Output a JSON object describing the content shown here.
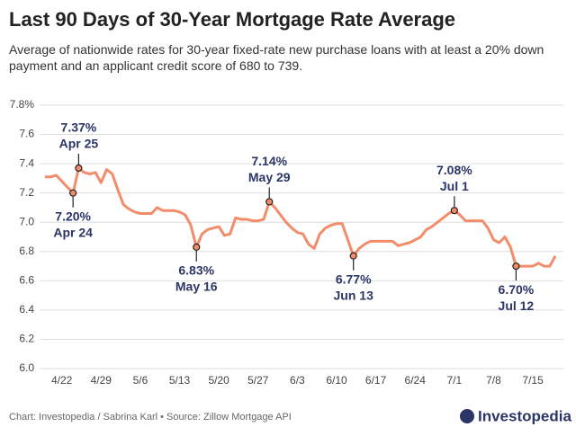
{
  "chart_data": {
    "type": "line",
    "title": "Last 90 Days of 30-Year Mortgage Rate Average",
    "subtitle": "Average of nationwide rates for 30-year fixed-rate new purchase loans with at least a 20% down payment and an applicant credit score of 680 to 739.",
    "source": "Chart: Investopedia / Sabrina Karl • Source: Zillow Mortgage API",
    "brand": "Investopedia",
    "categories": [
      null,
      null,
      null,
      "4/22",
      null,
      null,
      null,
      null,
      null,
      null,
      "4/29",
      null,
      null,
      null,
      null,
      null,
      null,
      "5/6",
      null,
      null,
      null,
      null,
      null,
      null,
      "5/13",
      null,
      null,
      null,
      null,
      null,
      null,
      "5/20",
      null,
      null,
      null,
      null,
      null,
      null,
      "5/27",
      null,
      null,
      null,
      null,
      null,
      null,
      "6/3",
      null,
      null,
      null,
      null,
      null,
      null,
      "6/10",
      null,
      null,
      null,
      null,
      null,
      null,
      "6/17",
      null,
      null,
      null,
      null,
      null,
      null,
      "6/24",
      null,
      null,
      null,
      null,
      null,
      null,
      "7/1",
      null,
      null,
      null,
      null,
      null,
      null,
      "7/8",
      null,
      null,
      null,
      null,
      null,
      null,
      "7/15",
      null,
      null,
      null,
      null
    ],
    "series": [
      {
        "name": "30-Year Mortgage Rate Average",
        "color": "#f28c6b",
        "values": [
          7.31,
          7.31,
          7.32,
          7.28,
          7.24,
          7.2,
          7.37,
          7.34,
          7.33,
          7.34,
          7.27,
          7.36,
          7.33,
          7.22,
          7.12,
          7.09,
          7.07,
          7.06,
          7.06,
          7.06,
          7.1,
          7.08,
          7.08,
          7.08,
          7.07,
          7.05,
          6.98,
          6.83,
          6.92,
          6.95,
          6.96,
          6.97,
          6.91,
          6.92,
          7.03,
          7.02,
          7.02,
          7.01,
          7.01,
          7.02,
          7.14,
          7.1,
          7.05,
          7.0,
          6.96,
          6.93,
          6.92,
          6.85,
          6.82,
          6.92,
          6.96,
          6.98,
          6.99,
          6.99,
          6.88,
          6.77,
          6.82,
          6.85,
          6.87,
          6.87,
          6.87,
          6.87,
          6.87,
          6.84,
          6.85,
          6.86,
          6.88,
          6.9,
          6.95,
          6.97,
          7.0,
          7.03,
          7.06,
          7.08,
          7.05,
          7.01,
          7.01,
          7.01,
          7.01,
          6.96,
          6.88,
          6.86,
          6.9,
          6.83,
          6.7,
          6.7,
          6.7,
          6.7,
          6.72,
          6.7,
          6.7,
          6.77
        ],
        "value_labels": [
          null,
          null,
          null,
          null,
          null,
          "7.20%",
          "7.37%",
          null,
          null,
          null,
          null,
          null,
          null,
          null,
          null,
          null,
          null,
          null,
          null,
          null,
          null,
          null,
          null,
          null,
          null,
          null,
          null,
          "6.83%",
          null,
          null,
          null,
          null,
          null,
          null,
          null,
          null,
          null,
          null,
          null,
          null,
          "7.14%",
          null,
          null,
          null,
          null,
          null,
          null,
          null,
          null,
          null,
          null,
          null,
          null,
          null,
          null,
          "6.77%",
          null,
          null,
          null,
          null,
          null,
          null,
          null,
          null,
          null,
          null,
          null,
          null,
          null,
          null,
          null,
          null,
          null,
          "7.08%",
          null,
          null,
          null,
          null,
          null,
          null,
          null,
          null,
          null,
          null,
          "6.70%",
          null,
          null,
          null,
          null,
          null,
          null,
          null
        ],
        "point_labels": [
          null,
          null,
          null,
          null,
          null,
          "Apr 24",
          "Apr 25",
          null,
          null,
          null,
          null,
          null,
          null,
          null,
          null,
          null,
          null,
          null,
          null,
          null,
          null,
          null,
          null,
          null,
          null,
          null,
          null,
          "May 16",
          null,
          null,
          null,
          null,
          null,
          null,
          null,
          null,
          null,
          null,
          null,
          null,
          "May 29",
          null,
          null,
          null,
          null,
          null,
          null,
          null,
          null,
          null,
          null,
          null,
          null,
          null,
          null,
          "Jun 13",
          null,
          null,
          null,
          null,
          null,
          null,
          null,
          null,
          null,
          null,
          null,
          null,
          null,
          null,
          null,
          null,
          null,
          "Jul 1",
          null,
          null,
          null,
          null,
          null,
          null,
          null,
          null,
          null,
          null,
          "Jul 12",
          null,
          null,
          null,
          null,
          null,
          null,
          null
        ]
      }
    ],
    "ylim": [
      6.0,
      7.8
    ],
    "yticks": [
      {
        "value": 6,
        "label": "6.0"
      },
      6.2,
      6.4,
      6.6,
      6.8,
      {
        "value": 7,
        "label": "7.0"
      },
      7.2,
      7.4,
      7.6,
      {
        "value": 7.8,
        "label": "7.8%"
      }
    ],
    "grid": true
  }
}
